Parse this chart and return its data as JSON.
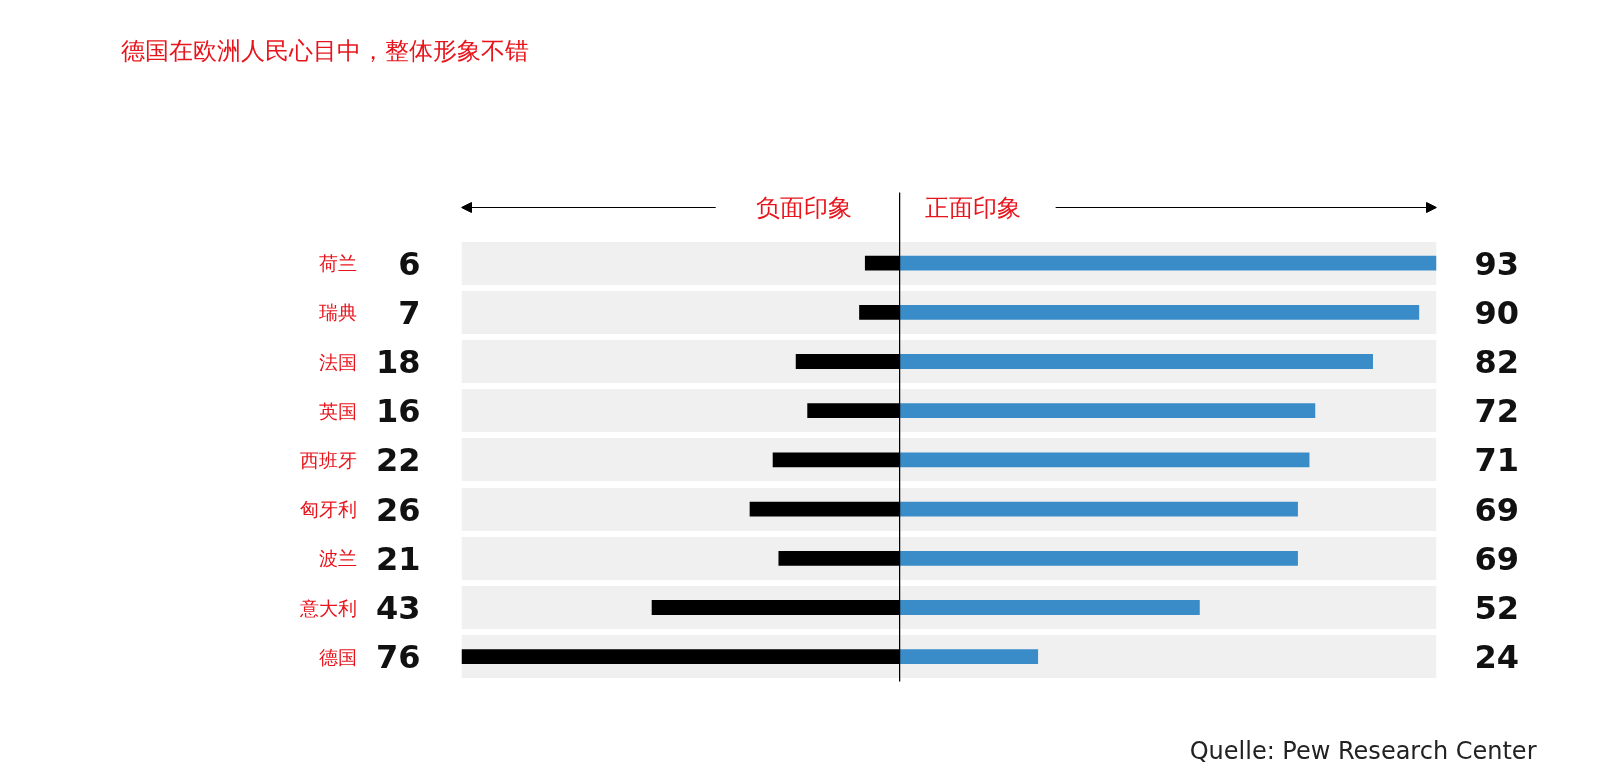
{
  "chart_data": [
    {
      "type": "bar",
      "orientation": "horizontal",
      "title": "德国在欧洲人民心目中，整体形象不错",
      "categories": [
        "荷兰",
        "瑞典",
        "法国",
        "英国",
        "西班牙",
        "匈牙利",
        "波兰",
        "意大利",
        "德国"
      ],
      "series": [
        {
          "name": "负面印象",
          "color": "#000000",
          "values": [
            6,
            7,
            18,
            16,
            22,
            26,
            21,
            43,
            76
          ]
        }
      ],
      "data_labels": true,
      "xlim": [
        76,
        0
      ],
      "tick_labels": "y",
      "grid": "y"
    },
    {
      "type": "bar",
      "orientation": "horizontal",
      "categories": [
        null,
        null,
        null,
        null,
        null,
        null,
        null,
        null,
        null
      ],
      "series": [
        {
          "name": "正面印象",
          "color": "#3a8cc8",
          "values": [
            93,
            90,
            82,
            72,
            71,
            69,
            69,
            52,
            24
          ]
        }
      ],
      "data_labels": true,
      "tick_labels": false,
      "grid": "y",
      "annotations": [
        "Quelle: Pew Research Center"
      ]
    }
  ]
}
